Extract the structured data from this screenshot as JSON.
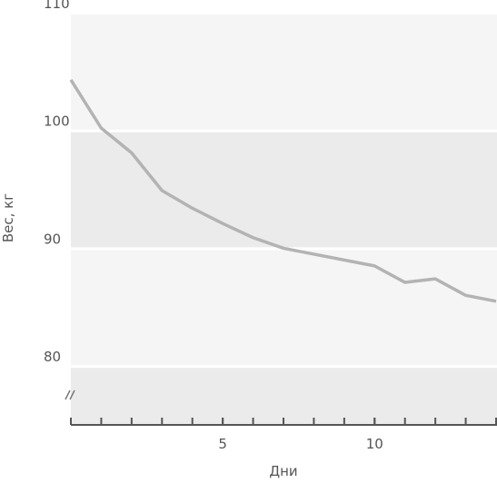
{
  "chart_data": {
    "type": "line",
    "y_label": "Вес, кг",
    "x_label": "Дни",
    "x": [
      0,
      1,
      2,
      3,
      4,
      5,
      6,
      7,
      8,
      9,
      10,
      11,
      12,
      13,
      14
    ],
    "series": [
      {
        "color": "#b3b3b3",
        "values": [
          104.3,
          100.2,
          98.1,
          94.9,
          93.4,
          92.1,
          90.9,
          90.0,
          89.5,
          89.0,
          88.5,
          87.1,
          87.4,
          86.0,
          85.5
        ]
      }
    ],
    "xlim": [
      0,
      14
    ],
    "xticks": [
      5,
      10
    ],
    "xminorticks": [
      0,
      1,
      2,
      3,
      4,
      5,
      6,
      7,
      8,
      9,
      10,
      11,
      12,
      13,
      14
    ],
    "ylim": [
      75,
      110
    ],
    "yticks": [
      80,
      90,
      100,
      110
    ],
    "band_colors": [
      "#f5f5f5",
      "#ebebeb"
    ],
    "axis_break": true
  }
}
